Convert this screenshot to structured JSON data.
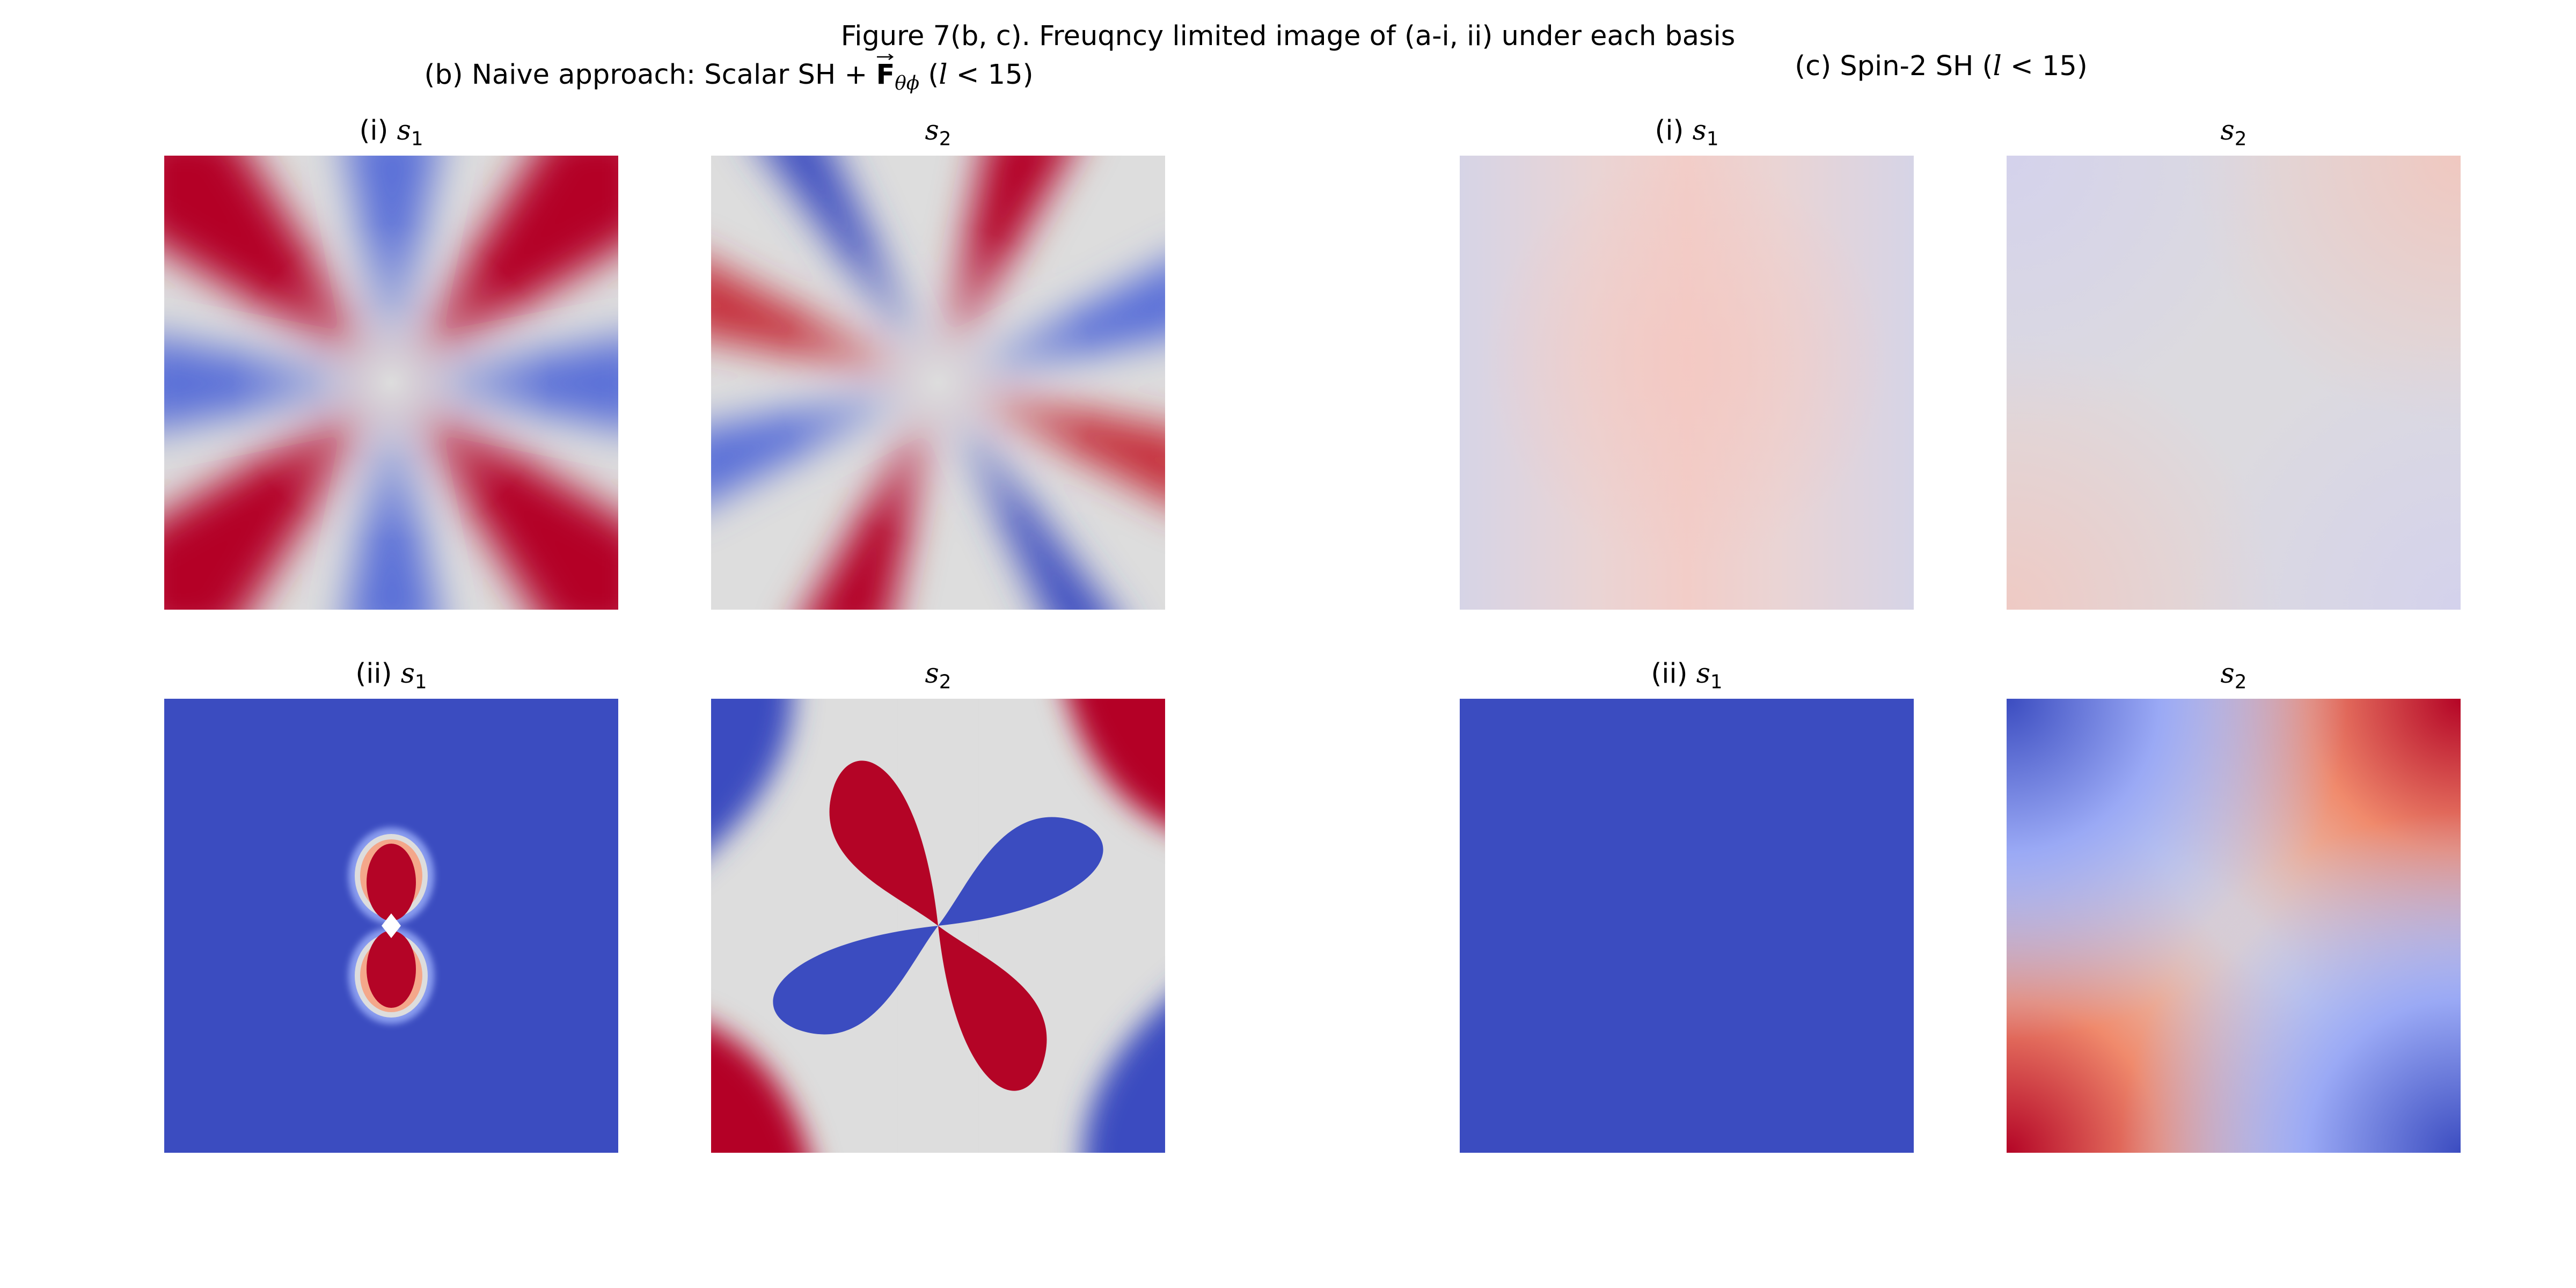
{
  "figure": {
    "title": "Figure 7(b, c). Freuqncy limited image of (a-i, ii) under each basis"
  },
  "groups": {
    "b": {
      "prefix": "(b) Naive approach: Scalar SH + ",
      "field_symbol": "F",
      "field_subscript": "θϕ",
      "open": " (",
      "l_symbol": "l",
      "cutoff": " < 15)"
    },
    "c": {
      "prefix": "(c) Spin-2 SH (",
      "l_symbol": "l",
      "cutoff": " < 15)"
    }
  },
  "panels": {
    "b_i_s1": {
      "prefix": "(i) ",
      "symbol": "s",
      "subscript": "1"
    },
    "b_i_s2": {
      "prefix": "",
      "symbol": "s",
      "subscript": "2"
    },
    "b_ii_s1": {
      "prefix": "(ii) ",
      "symbol": "s",
      "subscript": "1"
    },
    "b_ii_s2": {
      "prefix": "",
      "symbol": "s",
      "subscript": "2"
    },
    "c_i_s1": {
      "prefix": "(i) ",
      "symbol": "s",
      "subscript": "1"
    },
    "c_i_s2": {
      "prefix": "",
      "symbol": "s",
      "subscript": "2"
    },
    "c_ii_s1": {
      "prefix": "(ii) ",
      "symbol": "s",
      "subscript": "1"
    },
    "c_ii_s2": {
      "prefix": "",
      "symbol": "s",
      "subscript": "2"
    }
  },
  "colormap": {
    "name": "coolwarm",
    "blue": "#3b4cc0",
    "neutral": "#dddddd",
    "red": "#b40426",
    "light_blue": "#aab9ff",
    "light_red": "#f4a78a"
  }
}
